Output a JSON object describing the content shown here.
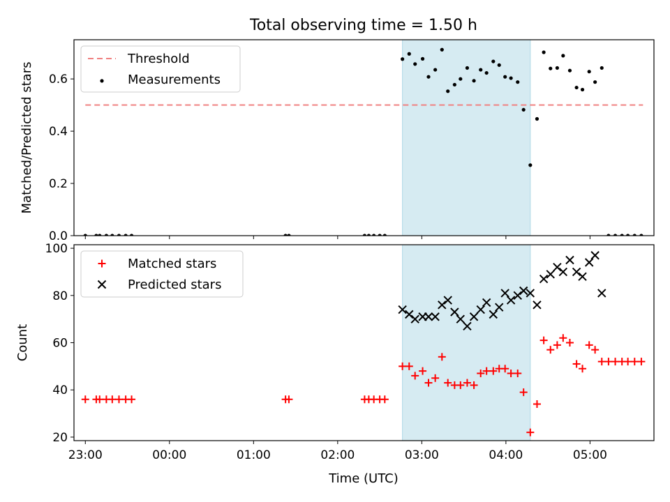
{
  "figure": {
    "title": "Total observing time = 1.50 h"
  },
  "chart_data": [
    {
      "type": "scatter",
      "panel": "top",
      "ylabel": "Matched/Predicted stars",
      "ylim": [
        0,
        0.75
      ],
      "yticks": [
        0.0,
        0.2,
        0.4,
        0.6
      ],
      "ytick_labels": [
        "0.0",
        "0.2",
        "0.4",
        "0.6"
      ],
      "x_unit": "hours after 23:00 UTC",
      "xlim": [
        -0.135,
        6.76
      ],
      "xticks": [
        0,
        1,
        2,
        3,
        4,
        5,
        6
      ],
      "shaded_span": {
        "from": 3.77,
        "to": 5.29,
        "color": "#add8e6"
      },
      "threshold": {
        "name": "Threshold",
        "y": 0.5,
        "x_from": 0.0,
        "x_to": 6.63,
        "color": "#f08080",
        "style": "dashed"
      },
      "series": [
        {
          "name": "Measurements",
          "marker": "dot",
          "color": "#000000",
          "x": [
            0.0,
            0.13,
            0.17,
            0.25,
            0.32,
            0.4,
            0.48,
            0.55,
            2.38,
            2.42,
            3.32,
            3.37,
            3.43,
            3.5,
            3.56,
            3.77,
            3.85,
            3.92,
            4.01,
            4.08,
            4.16,
            4.24,
            4.31,
            4.39,
            4.46,
            4.54,
            4.62,
            4.7,
            4.77,
            4.85,
            4.92,
            4.99,
            5.06,
            5.14,
            5.21,
            5.29,
            5.37,
            5.45,
            5.53,
            5.61,
            5.68,
            5.76,
            5.84,
            5.91,
            5.99,
            6.06,
            6.14,
            6.22,
            6.3,
            6.38,
            6.45,
            6.53,
            6.61
          ],
          "y": [
            0,
            0,
            0,
            0,
            0,
            0,
            0,
            0,
            0,
            0,
            0,
            0,
            0,
            0,
            0,
            0.676,
            0.696,
            0.657,
            0.677,
            0.608,
            0.635,
            0.712,
            0.553,
            0.578,
            0.6,
            0.642,
            0.593,
            0.635,
            0.623,
            0.667,
            0.653,
            0.608,
            0.603,
            0.588,
            0.482,
            0.27,
            0.447,
            0.702,
            0.64,
            0.642,
            0.689,
            0.632,
            0.567,
            0.559,
            0.628,
            0.588,
            0.642,
            0,
            0,
            0,
            0,
            0,
            0
          ]
        }
      ],
      "legend": {
        "position": "upper left",
        "entries": [
          "Threshold",
          "Measurements"
        ]
      }
    },
    {
      "type": "scatter",
      "panel": "bottom",
      "xlabel": "Time (UTC)",
      "ylabel": "Count",
      "ylim": [
        18.5,
        101.5
      ],
      "yticks": [
        20,
        40,
        60,
        80,
        100
      ],
      "ytick_labels": [
        "20",
        "40",
        "60",
        "80",
        "100"
      ],
      "x_unit": "hours after 23:00 UTC",
      "xlim": [
        -0.135,
        6.76
      ],
      "xticks": [
        0,
        1,
        2,
        3,
        4,
        5,
        6
      ],
      "xtick_labels": [
        "23:00",
        "00:00",
        "01:00",
        "02:00",
        "03:00",
        "04:00",
        "05:00"
      ],
      "shaded_span": {
        "from": 3.77,
        "to": 5.29,
        "color": "#add8e6"
      },
      "series": [
        {
          "name": "Matched stars",
          "marker": "plus",
          "color": "#ff0000",
          "x": [
            0.0,
            0.13,
            0.17,
            0.25,
            0.32,
            0.4,
            0.48,
            0.55,
            2.38,
            2.42,
            3.32,
            3.37,
            3.43,
            3.5,
            3.56,
            3.77,
            3.85,
            3.92,
            4.01,
            4.08,
            4.16,
            4.24,
            4.31,
            4.39,
            4.46,
            4.54,
            4.62,
            4.7,
            4.77,
            4.85,
            4.92,
            4.99,
            5.06,
            5.14,
            5.21,
            5.29,
            5.37,
            5.45,
            5.53,
            5.61,
            5.68,
            5.76,
            5.84,
            5.91,
            5.99,
            6.06,
            6.14,
            6.22,
            6.3,
            6.38,
            6.45,
            6.53,
            6.61
          ],
          "y": [
            36,
            36,
            36,
            36,
            36,
            36,
            36,
            36,
            36,
            36,
            36,
            36,
            36,
            36,
            36,
            50,
            50,
            46,
            48,
            43,
            45,
            54,
            43,
            42,
            42,
            43,
            42,
            47,
            48,
            48,
            49,
            49,
            47,
            47,
            39,
            22,
            34,
            61,
            57,
            59,
            62,
            60,
            51,
            49,
            59,
            57,
            52,
            52,
            52,
            52,
            52,
            52,
            52
          ]
        },
        {
          "name": "Predicted stars",
          "marker": "x",
          "color": "#000000",
          "x": [
            3.77,
            3.85,
            3.92,
            4.01,
            4.08,
            4.16,
            4.24,
            4.31,
            4.39,
            4.46,
            4.54,
            4.62,
            4.7,
            4.77,
            4.85,
            4.92,
            4.99,
            5.06,
            5.14,
            5.21,
            5.29,
            5.37,
            5.45,
            5.53,
            5.61,
            5.68,
            5.76,
            5.84,
            5.91,
            5.99,
            6.06,
            6.14
          ],
          "y": [
            74,
            72,
            70,
            71,
            71,
            71,
            76,
            78,
            73,
            70,
            67,
            71,
            74,
            77,
            72,
            75,
            81,
            78,
            80,
            82,
            81,
            76,
            87,
            89,
            92,
            90,
            95,
            90,
            88,
            94,
            97,
            81
          ]
        }
      ],
      "legend": {
        "position": "upper left",
        "entries": [
          "Matched stars",
          "Predicted stars"
        ]
      }
    }
  ]
}
